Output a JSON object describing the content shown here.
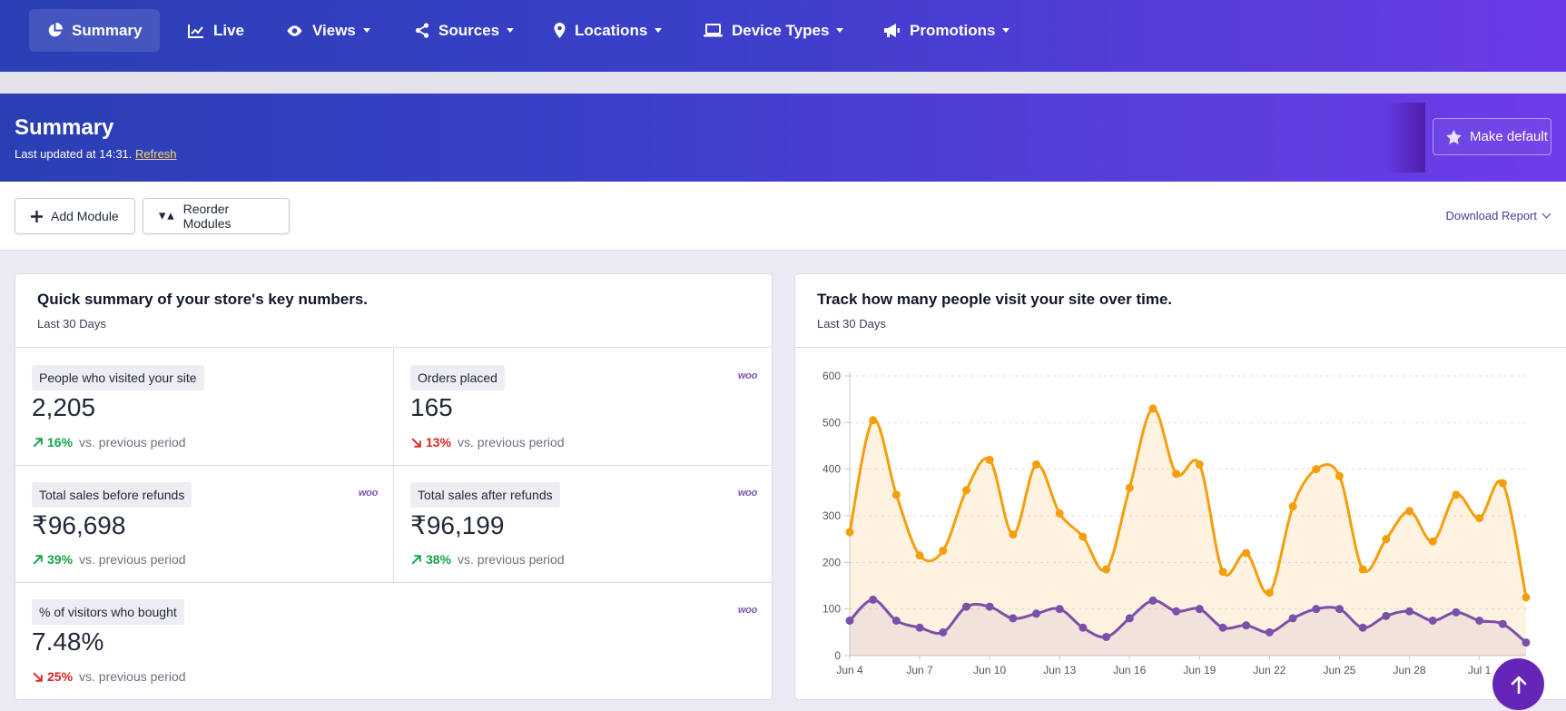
{
  "nav": {
    "items": [
      {
        "label": "Summary",
        "icon": "pie-chart-icon",
        "has_dropdown": false,
        "active": true
      },
      {
        "label": "Live",
        "icon": "line-chart-icon",
        "has_dropdown": false
      },
      {
        "label": "Views",
        "icon": "eye-icon",
        "has_dropdown": true
      },
      {
        "label": "Sources",
        "icon": "share-icon",
        "has_dropdown": true
      },
      {
        "label": "Locations",
        "icon": "map-pin-icon",
        "has_dropdown": true
      },
      {
        "label": "Device Types",
        "icon": "laptop-icon",
        "has_dropdown": true
      },
      {
        "label": "Promotions",
        "icon": "megaphone-icon",
        "has_dropdown": true
      }
    ]
  },
  "header": {
    "title": "Summary",
    "updated_text": "Last updated at 14:31.",
    "refresh_link": "Refresh",
    "make_default_label": "Make default"
  },
  "toolbar": {
    "add_module_label": "Add Module",
    "reorder_modules_label": "Reorder Modules",
    "download_report_label": "Download Report"
  },
  "summary_card": {
    "title": "Quick summary of your store's key numbers.",
    "subtitle": "Last 30 Days",
    "vs_text": "vs. previous period",
    "woo_badge": "woo",
    "tiles": [
      {
        "label": "People who visited your site",
        "value": "2,205",
        "delta": "16%",
        "direction": "up",
        "woo": false
      },
      {
        "label": "Orders placed",
        "value": "165",
        "delta": "13%",
        "direction": "down",
        "woo": true
      },
      {
        "label": "Total sales before refunds",
        "value": "₹96,698",
        "delta": "39%",
        "direction": "up",
        "woo": true
      },
      {
        "label": "Total sales after refunds",
        "value": "₹96,199",
        "delta": "38%",
        "direction": "up",
        "woo": true
      },
      {
        "label": "% of visitors who bought",
        "value": "7.48%",
        "delta": "25%",
        "direction": "down",
        "woo": true
      }
    ]
  },
  "visits_card": {
    "title": "Track how many people visit your site over time.",
    "subtitle": "Last 30 Days"
  },
  "colors": {
    "accent": "#6526b8",
    "series_orange": "#f59e0b",
    "series_purple": "#7c4fa8",
    "up": "#16a34a",
    "down": "#dc2626"
  },
  "chart_data": {
    "type": "line",
    "x": [
      "Jun 4",
      "Jun 5",
      "Jun 6",
      "Jun 7",
      "Jun 8",
      "Jun 9",
      "Jun 10",
      "Jun 11",
      "Jun 12",
      "Jun 13",
      "Jun 14",
      "Jun 15",
      "Jun 16",
      "Jun 17",
      "Jun 18",
      "Jun 19",
      "Jun 20",
      "Jun 21",
      "Jun 22",
      "Jun 23",
      "Jun 24",
      "Jun 25",
      "Jun 26",
      "Jun 27",
      "Jun 28",
      "Jun 29",
      "Jun 30",
      "Jul 1",
      "Jul 2",
      "Jul 3"
    ],
    "x_tick_labels": [
      "Jun 4",
      "Jun 7",
      "Jun 10",
      "Jun 13",
      "Jun 16",
      "Jun 19",
      "Jun 22",
      "Jun 25",
      "Jun 28",
      "Jul 1"
    ],
    "series": [
      {
        "color": "#f59e0b",
        "values": [
          265,
          505,
          345,
          215,
          225,
          355,
          420,
          260,
          410,
          305,
          255,
          185,
          360,
          530,
          390,
          410,
          180,
          220,
          135,
          320,
          400,
          385,
          185,
          250,
          310,
          245,
          345,
          295,
          370,
          125
        ]
      },
      {
        "color": "#7c4fa8",
        "values": [
          75,
          120,
          75,
          60,
          50,
          105,
          105,
          80,
          90,
          100,
          60,
          40,
          80,
          118,
          95,
          100,
          60,
          65,
          50,
          80,
          100,
          100,
          60,
          85,
          95,
          75,
          93,
          75,
          68,
          28
        ]
      }
    ],
    "ylim": [
      0,
      600
    ],
    "yticks": [
      0,
      100,
      200,
      300,
      400,
      500,
      600
    ],
    "grid": true,
    "title": "",
    "xlabel": "",
    "ylabel": ""
  }
}
